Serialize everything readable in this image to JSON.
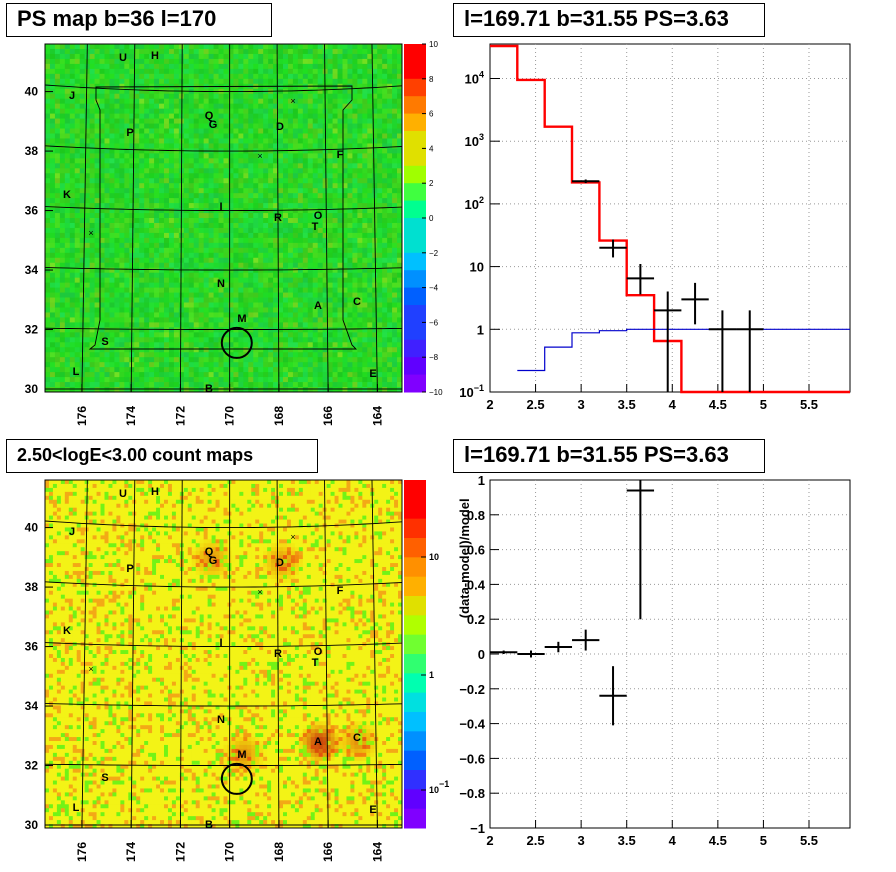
{
  "panels": {
    "top_left_title": "PS map b=36 l=170",
    "top_right_title": "l=169.71 b=31.55 PS=3.63",
    "bottom_left_title": "2.50<logE<3.00 count maps",
    "bottom_right_title": "l=169.71 b=31.55 PS=3.63"
  },
  "sources": [
    {
      "label": "U"
    },
    {
      "label": "H"
    },
    {
      "label": "J"
    },
    {
      "label": "Q"
    },
    {
      "label": "G"
    },
    {
      "label": "D"
    },
    {
      "label": "P"
    },
    {
      "label": "F"
    },
    {
      "label": "K"
    },
    {
      "label": "I"
    },
    {
      "label": "R"
    },
    {
      "label": "O"
    },
    {
      "label": "T"
    },
    {
      "label": "N"
    },
    {
      "label": "A"
    },
    {
      "label": "C"
    },
    {
      "label": "M"
    },
    {
      "label": "S"
    },
    {
      "label": "L"
    },
    {
      "label": "B"
    },
    {
      "label": "E"
    }
  ],
  "colors": {
    "model_line": "#ff0000",
    "background_line": "#0000cc",
    "data_points": "#000000",
    "marker_circle": "#000000"
  },
  "chart_data": [
    {
      "type": "heatmap",
      "title": "PS map b=36 l=170",
      "x_ticks": [
        "176",
        "174",
        "172",
        "170",
        "168",
        "166",
        "164"
      ],
      "y_ticks": [
        "30",
        "32",
        "34",
        "36",
        "38",
        "40"
      ],
      "xlim": [
        177.5,
        163
      ],
      "ylim": [
        29.9,
        41.6
      ],
      "colorbar_ticks": [
        "10",
        "8",
        "6",
        "4",
        "2",
        "0",
        "−2",
        "−4",
        "−6",
        "−8",
        "−10"
      ],
      "colorbar_range": [
        -10,
        10
      ],
      "marker": {
        "l": 169.71,
        "b": 31.55
      }
    },
    {
      "type": "line",
      "title": "l=169.71 b=31.55 PS=3.63",
      "x_ticks": [
        "2",
        "2.5",
        "3",
        "3.5",
        "4",
        "4.5",
        "5",
        "5.5"
      ],
      "y_ticks": [
        "10^-1",
        "1",
        "10",
        "10^2",
        "10^3",
        "10^4"
      ],
      "xlim": [
        2,
        5.95
      ],
      "ylim_log10": [
        -1,
        4.55
      ],
      "log_y": true,
      "grid": true,
      "series": [
        {
          "kind": "step",
          "color": "#ff0000",
          "edges": [
            2.0,
            2.3,
            2.6,
            2.9,
            3.2,
            3.5,
            3.8,
            4.1,
            4.4,
            5.95
          ],
          "values": [
            33000,
            9500,
            1700,
            220,
            26,
            3.5,
            0.65,
            0.1,
            0.1
          ]
        },
        {
          "kind": "step",
          "color": "#0000cc",
          "edges": [
            2.3,
            2.6,
            2.9,
            3.2,
            3.5,
            3.8,
            4.1,
            4.4,
            5.95
          ],
          "values": [
            0.22,
            0.52,
            0.88,
            0.95,
            1.0,
            1.0,
            1.0,
            1.0
          ]
        },
        {
          "kind": "errorbar",
          "color": "#000000",
          "points": [
            {
              "x": 3.05,
              "y": 230,
              "xerr": 0.15,
              "ylo": 215,
              "yhi": 245
            },
            {
              "x": 3.35,
              "y": 20,
              "xerr": 0.15,
              "ylo": 14,
              "yhi": 27
            },
            {
              "x": 3.65,
              "y": 6.5,
              "xerr": 0.15,
              "ylo": 3.6,
              "yhi": 11
            },
            {
              "x": 3.95,
              "y": 2.0,
              "xerr": 0.15,
              "ylo": 0.1,
              "yhi": 4.0
            },
            {
              "x": 4.25,
              "y": 3.0,
              "xerr": 0.15,
              "ylo": 1.2,
              "yhi": 5.5
            },
            {
              "x": 4.55,
              "y": 1.0,
              "xerr": 0.15,
              "ylo": 0.1,
              "yhi": 2.0
            },
            {
              "x": 4.85,
              "y": 1.0,
              "xerr": 0.15,
              "ylo": 0.1,
              "yhi": 2.0
            }
          ]
        }
      ]
    },
    {
      "type": "heatmap",
      "title": "2.50<logE<3.00 count maps",
      "x_ticks": [
        "176",
        "174",
        "172",
        "170",
        "168",
        "166",
        "164"
      ],
      "y_ticks": [
        "30",
        "32",
        "34",
        "36",
        "38",
        "40"
      ],
      "xlim": [
        177.5,
        163
      ],
      "ylim": [
        29.9,
        41.6
      ],
      "colorbar_ticks": [
        "10",
        "1",
        "10^-1"
      ],
      "colorbar_scale": "log",
      "marker": {
        "l": 169.71,
        "b": 31.55
      }
    },
    {
      "type": "scatter",
      "title": "l=169.71 b=31.55 PS=3.63",
      "ylabel": "(data-model)/model",
      "x_ticks": [
        "2",
        "2.5",
        "3",
        "3.5",
        "4",
        "4.5",
        "5",
        "5.5"
      ],
      "y_ticks": [
        "-1",
        "-0.8",
        "-0.6",
        "-0.4",
        "-0.2",
        "0",
        "0.2",
        "0.4",
        "0.6",
        "0.8",
        "1"
      ],
      "xlim": [
        2,
        5.95
      ],
      "ylim": [
        -1,
        1
      ],
      "grid": true,
      "points": [
        {
          "x": 2.15,
          "y": 0.01,
          "xerr": 0.15,
          "ylo": 0.0,
          "yhi": 0.02
        },
        {
          "x": 2.45,
          "y": 0.0,
          "xerr": 0.15,
          "ylo": -0.02,
          "yhi": 0.02
        },
        {
          "x": 2.75,
          "y": 0.04,
          "xerr": 0.15,
          "ylo": 0.01,
          "yhi": 0.07
        },
        {
          "x": 3.05,
          "y": 0.08,
          "xerr": 0.15,
          "ylo": 0.02,
          "yhi": 0.14
        },
        {
          "x": 3.35,
          "y": -0.24,
          "xerr": 0.15,
          "ylo": -0.41,
          "yhi": -0.07
        },
        {
          "x": 3.65,
          "y": 0.94,
          "xerr": 0.15,
          "ylo": 0.2,
          "yhi": 1.0
        }
      ]
    }
  ]
}
